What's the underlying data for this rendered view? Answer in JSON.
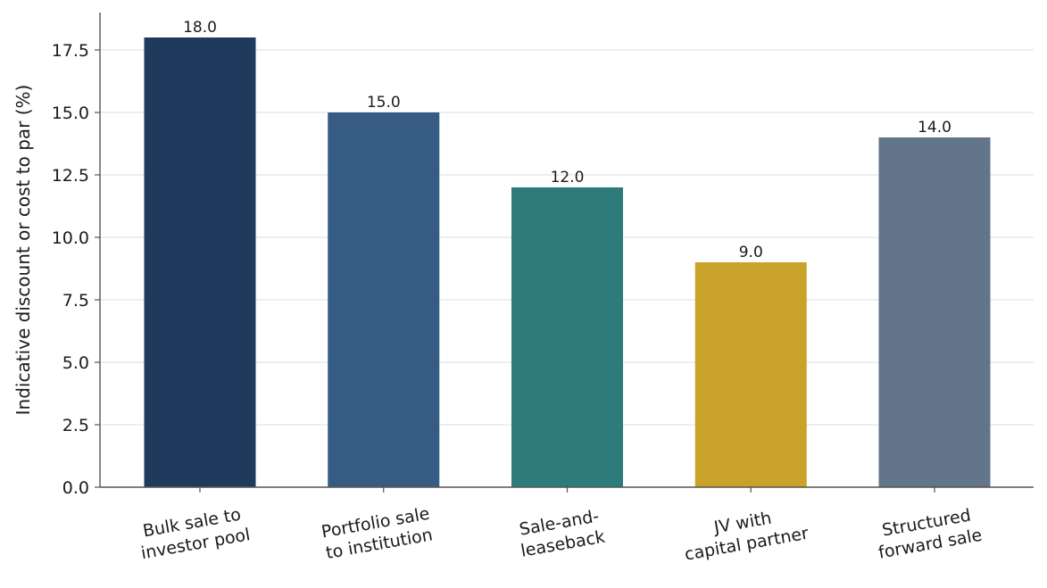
{
  "chart_data": {
    "type": "bar",
    "title": "",
    "xlabel": "",
    "ylabel": "Indicative discount or cost to par (%)",
    "ylim": [
      0,
      19.0
    ],
    "yticks": [
      0.0,
      2.5,
      5.0,
      7.5,
      10.0,
      12.5,
      15.0,
      17.5
    ],
    "ytick_labels": [
      "0.0",
      "2.5",
      "5.0",
      "7.5",
      "10.0",
      "12.5",
      "15.0",
      "17.5"
    ],
    "grid": "horizontal",
    "categories": [
      [
        "Bulk sale to",
        "investor pool"
      ],
      [
        "Portfolio sale",
        "to institution"
      ],
      [
        "Sale-and-",
        "leaseback"
      ],
      [
        "JV with",
        "capital partner"
      ],
      [
        "Structured",
        "forward sale"
      ]
    ],
    "values": [
      18.0,
      15.0,
      12.0,
      9.0,
      14.0
    ],
    "value_labels": [
      "18.0",
      "15.0",
      "12.0",
      "9.0",
      "14.0"
    ],
    "colors": [
      "#1f3a5c",
      "#365c84",
      "#2d7b7b",
      "#c9a22a",
      "#63758b"
    ]
  }
}
